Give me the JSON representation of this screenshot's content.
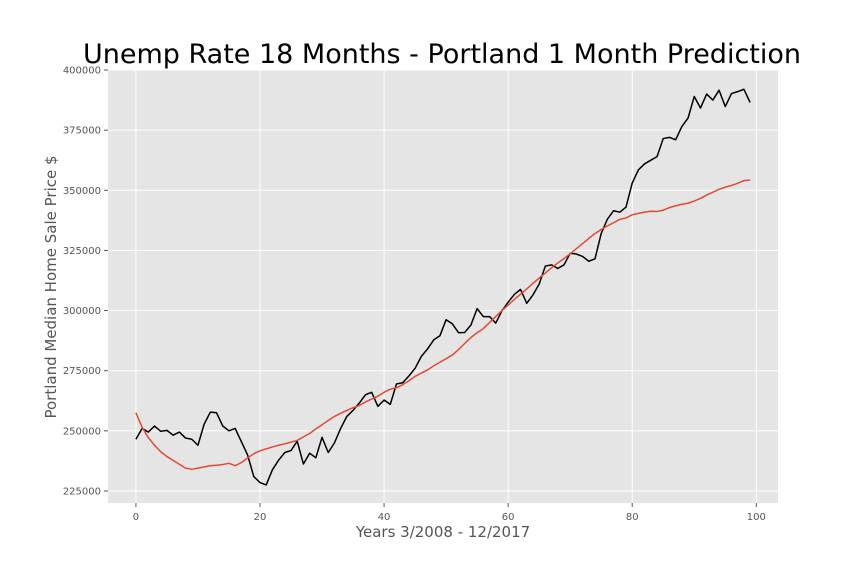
{
  "chart_data": {
    "type": "line",
    "title": "Unemp Rate 18 Months - Portland 1 Month Prediction",
    "xlabel": "Years 3/2008 - 12/2017",
    "ylabel": "Portland Median Home Sale Price $",
    "xlim": [
      -4.5,
      103.5
    ],
    "ylim": [
      220000,
      400000
    ],
    "xticks": [
      0,
      20,
      40,
      60,
      80,
      100
    ],
    "yticks": [
      225000,
      250000,
      275000,
      300000,
      325000,
      350000,
      375000,
      400000
    ],
    "grid": true,
    "legend": "none",
    "colors": {
      "background": "#e5e5e5",
      "grid": "#ffffff",
      "actual": "#000000",
      "predicted": "#e24a33"
    },
    "series": [
      {
        "color": "#000000",
        "values": [
          246500,
          251000,
          249500,
          252000,
          249800,
          250200,
          248200,
          249500,
          247000,
          246500,
          244000,
          252800,
          257800,
          257500,
          252000,
          250000,
          251000,
          245500,
          240000,
          231000,
          228500,
          227500,
          233800,
          237800,
          241000,
          241800,
          245700,
          236200,
          240700,
          238800,
          247300,
          241000,
          245000,
          251000,
          256000,
          258500,
          261500,
          265000,
          266000,
          260200,
          262800,
          261000,
          269500,
          270000,
          272800,
          276000,
          280900,
          284000,
          287800,
          289500,
          296200,
          294500,
          290800,
          290900,
          294000,
          300800,
          297500,
          297500,
          294800,
          299900,
          303500,
          306700,
          308800,
          303000,
          306500,
          311000,
          318500,
          319000,
          317500,
          319000,
          323800,
          323500,
          322500,
          320500,
          321500,
          332000,
          338000,
          341500,
          340900,
          343000,
          353000,
          358500,
          361000,
          362500,
          364000,
          371500,
          372000,
          371000,
          376500,
          380000,
          389000,
          384200,
          390000,
          387500,
          391600,
          384800,
          390200,
          391000,
          392000,
          386500
        ]
      },
      {
        "color": "#e24a33",
        "values": [
          257500,
          251500,
          247200,
          244000,
          241300,
          239300,
          237700,
          236100,
          234500,
          234000,
          234500,
          235000,
          235500,
          235700,
          236000,
          236500,
          235500,
          236800,
          238700,
          240500,
          241700,
          242500,
          243300,
          244000,
          244600,
          245300,
          246000,
          247500,
          248900,
          250800,
          252500,
          254300,
          256000,
          257300,
          258500,
          259600,
          260500,
          262000,
          263200,
          264400,
          266000,
          267300,
          267900,
          269200,
          270800,
          272600,
          274000,
          275300,
          277000,
          278500,
          280000,
          281500,
          283800,
          286300,
          288800,
          290800,
          292500,
          295000,
          297500,
          300000,
          302300,
          304600,
          306800,
          309000,
          311300,
          313500,
          315600,
          317800,
          319800,
          321600,
          323600,
          325700,
          327800,
          330000,
          332000,
          333700,
          335200,
          336500,
          337900,
          338500,
          339800,
          340400,
          340900,
          341300,
          341200,
          341700,
          342800,
          343500,
          344200,
          344600,
          345500,
          346600,
          348000,
          349200,
          350400,
          351300,
          352000,
          352900,
          354000,
          354200
        ]
      }
    ]
  }
}
